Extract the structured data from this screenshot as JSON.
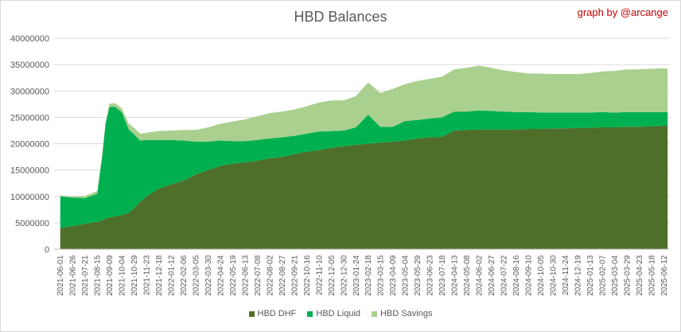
{
  "credit": "graph by @arcange",
  "chart_data": {
    "type": "area",
    "stacked": true,
    "title": "HBD Balances",
    "xlabel": "",
    "ylabel": "",
    "ylim": [
      0,
      40000000
    ],
    "yticks": [
      "0",
      "5000000",
      "10000000",
      "15000000",
      "20000000",
      "25000000",
      "30000000",
      "35000000",
      "40000000"
    ],
    "grid": true,
    "legend_position": "bottom",
    "x_tick_labels": [
      "2021-06-01",
      "2021-06-26",
      "2021-07-21",
      "2021-08-15",
      "2021-09-09",
      "2021-10-04",
      "2021-10-29",
      "2021-11-23",
      "2021-12-18",
      "2022-01-12",
      "2022-02-06",
      "2022-03-05",
      "2022-03-30",
      "2022-04-24",
      "2022-05-19",
      "2022-06-13",
      "2022-07-08",
      "2022-08-02",
      "2022-08-27",
      "2022-09-21",
      "2022-10-16",
      "2022-11-10",
      "2022-12-05",
      "2022-12-30",
      "2023-01-24",
      "2023-02-18",
      "2023-03-15",
      "2023-04-09",
      "2023-05-04",
      "2023-05-29",
      "2023-06-23",
      "2023-07-18",
      "2024-04-13",
      "2024-05-08",
      "2024-06-02",
      "2024-06-27",
      "2024-07-22",
      "2024-08-16",
      "2024-09-10",
      "2024-10-05",
      "2024-10-30",
      "2024-11-24",
      "2024-12-19",
      "2025-01-13",
      "2025-02-07",
      "2025-03-04",
      "2025-03-29",
      "2025-04-23",
      "2025-05-18",
      "2025-06-12"
    ],
    "x": [
      "2021-06-01",
      "2021-06-26",
      "2021-07-21",
      "2021-08-15",
      "2021-08-25",
      "2021-09-01",
      "2021-09-09",
      "2021-09-20",
      "2021-10-04",
      "2021-10-18",
      "2021-10-29",
      "2021-11-10",
      "2021-11-23",
      "2021-12-18",
      "2022-01-12",
      "2022-02-06",
      "2022-03-05",
      "2022-03-30",
      "2022-04-24",
      "2022-05-19",
      "2022-06-13",
      "2022-07-08",
      "2022-08-02",
      "2022-08-27",
      "2022-09-21",
      "2022-10-16",
      "2022-11-10",
      "2022-12-05",
      "2022-12-30",
      "2023-01-24",
      "2023-02-18",
      "2023-03-15",
      "2023-04-09",
      "2023-05-04",
      "2023-05-29",
      "2023-06-23",
      "2023-07-18",
      "2024-04-13",
      "2024-05-08",
      "2024-06-02",
      "2024-06-27",
      "2024-07-22",
      "2024-08-16",
      "2024-09-10",
      "2024-10-05",
      "2024-10-30",
      "2024-11-24",
      "2024-12-19",
      "2025-01-13",
      "2025-02-07",
      "2025-03-04",
      "2025-03-29",
      "2025-04-23",
      "2025-05-18",
      "2025-06-12",
      "2025-06-20"
    ],
    "series": [
      {
        "name": "HBD DHF",
        "color": "#4e6f2a",
        "values": [
          4000000,
          4400000,
          4800000,
          5200000,
          5500000,
          5800000,
          6000000,
          6200000,
          6500000,
          6900000,
          7800000,
          9000000,
          10000000,
          11500000,
          12300000,
          13000000,
          14200000,
          15000000,
          15800000,
          16200000,
          16500000,
          16800000,
          17200000,
          17500000,
          18000000,
          18500000,
          18800000,
          19200000,
          19500000,
          19800000,
          20000000,
          20200000,
          20400000,
          20600000,
          21000000,
          21200000,
          21300000,
          22500000,
          22600000,
          22700000,
          22700000,
          22700000,
          22700000,
          22800000,
          22800000,
          22900000,
          22900000,
          23000000,
          23000000,
          23100000,
          23100000,
          23200000,
          23200000,
          23300000,
          23400000,
          23400000
        ]
      },
      {
        "name": "HBD Liquid",
        "color": "#00b050",
        "values": [
          6000000,
          5400000,
          4900000,
          5300000,
          12000000,
          18000000,
          21000000,
          20800000,
          19500000,
          15800000,
          14000000,
          11600000,
          10700000,
          9200000,
          8400000,
          7600000,
          6200000,
          5400000,
          4800000,
          4300000,
          4000000,
          3900000,
          3800000,
          3700000,
          3500000,
          3400000,
          3500000,
          3200000,
          3000000,
          3300000,
          5500000,
          3000000,
          2800000,
          3700000,
          3500000,
          3600000,
          3700000,
          3600000,
          3500000,
          3600000,
          3500000,
          3400000,
          3300000,
          3200000,
          3100000,
          3000000,
          3000000,
          2900000,
          2900000,
          2900000,
          2800000,
          2800000,
          2800000,
          2700000,
          2600000,
          2600000
        ]
      },
      {
        "name": "HBD Savings",
        "color": "#a9d08e",
        "values": [
          200000,
          200000,
          400000,
          500000,
          500000,
          300000,
          600000,
          700000,
          700000,
          1100000,
          1200000,
          1300000,
          1400000,
          1700000,
          1800000,
          2000000,
          2200000,
          2700000,
          3200000,
          3700000,
          4100000,
          4500000,
          4800000,
          4900000,
          5000000,
          5200000,
          5500000,
          5800000,
          5700000,
          5900000,
          6100000,
          6400000,
          7200000,
          7000000,
          7400000,
          7500000,
          7700000,
          8000000,
          8300000,
          8500000,
          8200000,
          7800000,
          7600000,
          7300000,
          7400000,
          7300000,
          7300000,
          7300000,
          7500000,
          7700000,
          7900000,
          8100000,
          8100000,
          8200000,
          8300000,
          8200000
        ]
      }
    ]
  }
}
